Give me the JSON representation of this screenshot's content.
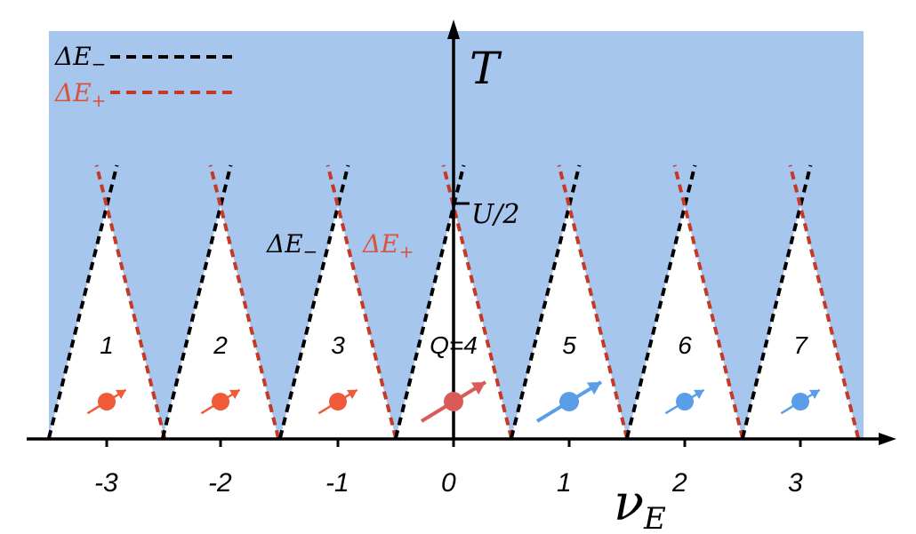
{
  "colors": {
    "background_region": "#a7c6ee",
    "cone_fill": "#ffffff",
    "line_black": "#000000",
    "line_red": "#c43a26",
    "spin_red": "#f05a3a",
    "spin_red_center": "#d95b57",
    "spin_blue": "#5b9ee8"
  },
  "axes": {
    "y_label": "T",
    "x_label_main": "ν",
    "x_label_sub": "E",
    "u_half_label": "U/2"
  },
  "legend": {
    "minus_label": "ΔE",
    "minus_sub": "−",
    "plus_label": "ΔE",
    "plus_sub": "+"
  },
  "inline_labels": {
    "minus_label": "ΔE",
    "minus_sub": "−",
    "plus_label": "ΔE",
    "plus_sub": "+"
  },
  "x_ticks": [
    "-3",
    "-2",
    "-1",
    "0",
    "1",
    "2",
    "3"
  ],
  "cones": [
    {
      "q_label": "1",
      "spin": "red-small"
    },
    {
      "q_label": "2",
      "spin": "red-small"
    },
    {
      "q_label": "3",
      "spin": "red-small"
    },
    {
      "q_label": "Q=4",
      "spin": "red-large"
    },
    {
      "q_label": "5",
      "spin": "blue-large"
    },
    {
      "q_label": "6",
      "spin": "blue-small"
    },
    {
      "q_label": "7",
      "spin": "blue-small"
    }
  ]
}
